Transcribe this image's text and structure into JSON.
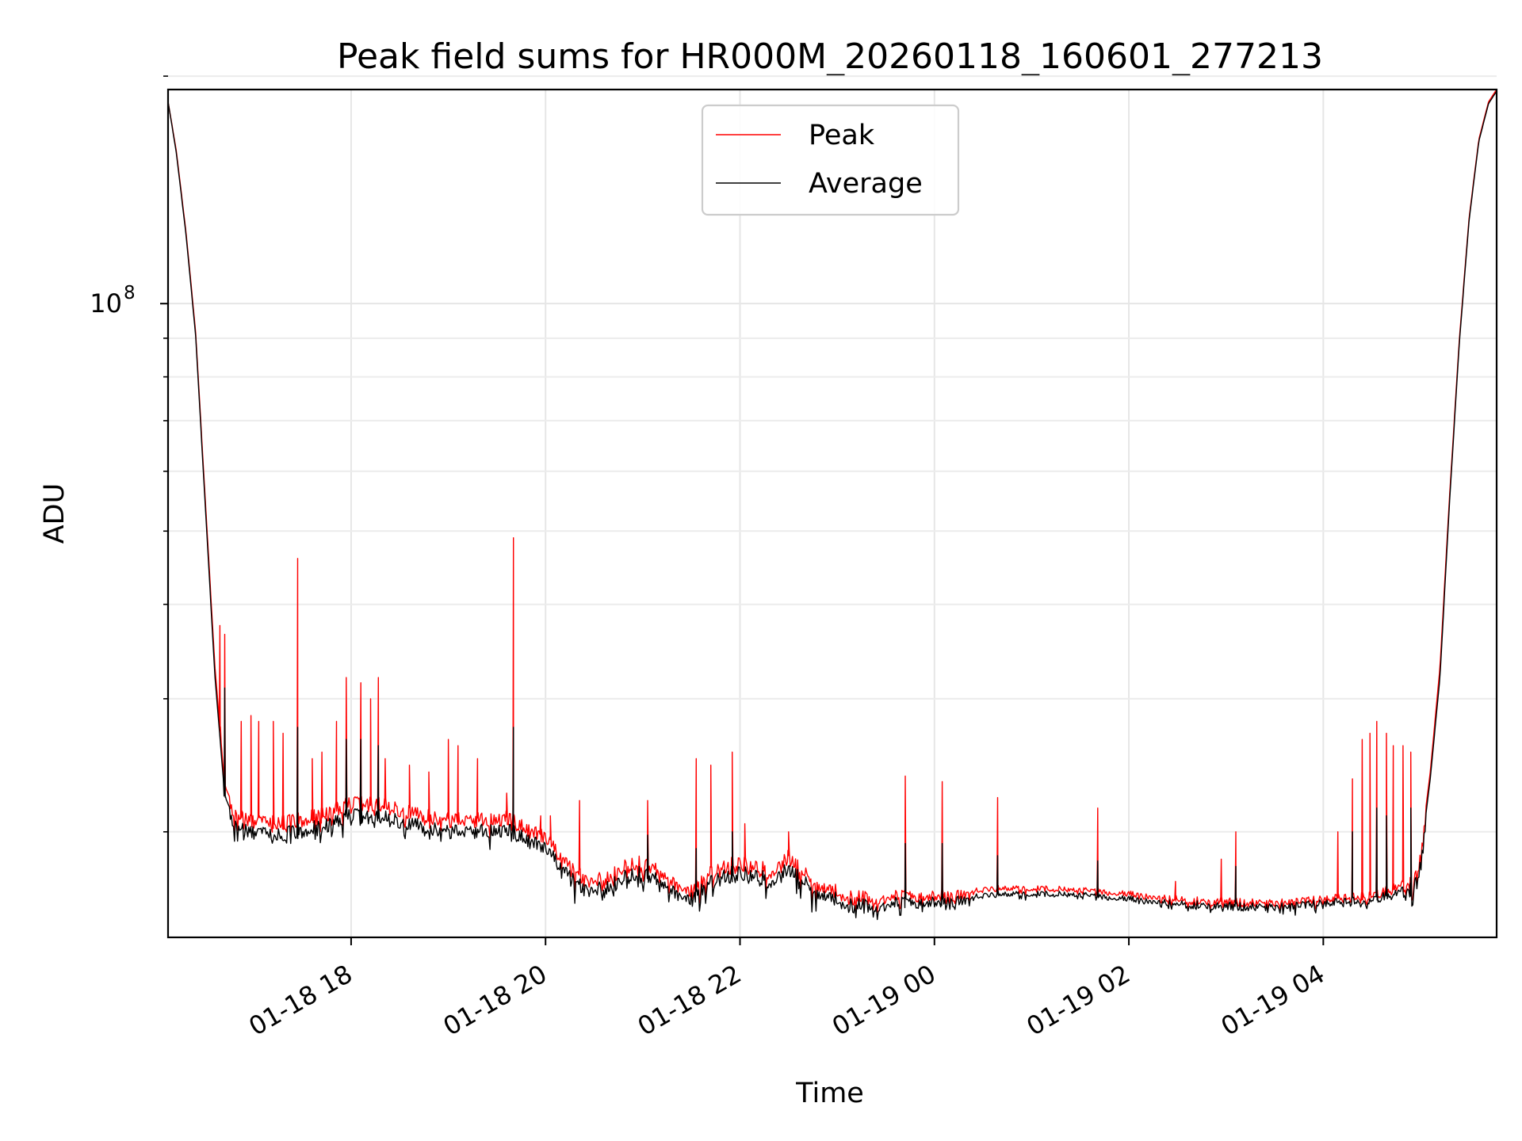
{
  "chart_data": {
    "type": "line",
    "title": "Peak field sums for HR000M_20260118_160601_277213",
    "xlabel": "Time",
    "ylabel": "ADU",
    "yscale": "log",
    "ylim": [
      14500000,
      192000000
    ],
    "xlim_hours": [
      16.117,
      29.783
    ],
    "x_unit": "hours since 2026-01-18 00:00",
    "grid": true,
    "legend_position": "upper center",
    "x_ticks": [
      {
        "hour": 18,
        "label": "01-18 18"
      },
      {
        "hour": 20,
        "label": "01-18 20"
      },
      {
        "hour": 22,
        "label": "01-18 22"
      },
      {
        "hour": 24,
        "label": "01-19 00"
      },
      {
        "hour": 26,
        "label": "01-19 02"
      },
      {
        "hour": 28,
        "label": "01-19 04"
      }
    ],
    "y_major_ticks": [
      {
        "value": 100000000,
        "label": "10",
        "exp": "8"
      }
    ],
    "y_minor_ticks": [
      20000000,
      30000000,
      40000000,
      50000000,
      60000000,
      70000000,
      80000000,
      90000000,
      200000000
    ],
    "series": [
      {
        "name": "Peak",
        "color": "#ff0000",
        "baseline": [
          [
            16.117,
            185000000
          ],
          [
            16.2,
            160000000
          ],
          [
            16.3,
            125000000
          ],
          [
            16.4,
            92000000
          ],
          [
            16.5,
            55000000
          ],
          [
            16.6,
            33000000
          ],
          [
            16.7,
            23000000
          ],
          [
            16.8,
            21500000
          ],
          [
            17.0,
            21000000
          ],
          [
            17.3,
            21000000
          ],
          [
            17.7,
            21500000
          ],
          [
            18.0,
            22300000
          ],
          [
            18.3,
            22200000
          ],
          [
            18.7,
            21500000
          ],
          [
            19.0,
            21200000
          ],
          [
            19.3,
            21200000
          ],
          [
            19.6,
            21300000
          ],
          [
            20.0,
            20000000
          ],
          [
            20.4,
            17600000
          ],
          [
            20.6,
            17700000
          ],
          [
            20.9,
            18700000
          ],
          [
            21.2,
            18100000
          ],
          [
            21.5,
            17000000
          ],
          [
            21.8,
            18500000
          ],
          [
            22.05,
            18500000
          ],
          [
            22.3,
            18200000
          ],
          [
            22.5,
            18900000
          ],
          [
            22.8,
            17300000
          ],
          [
            23.2,
            16800000
          ],
          [
            24.0,
            16700000
          ],
          [
            24.7,
            17000000
          ],
          [
            25.4,
            16950000
          ],
          [
            26.0,
            16700000
          ],
          [
            26.5,
            16450000
          ],
          [
            27.0,
            16350000
          ],
          [
            27.5,
            16300000
          ],
          [
            28.0,
            16500000
          ],
          [
            28.5,
            16650000
          ],
          [
            28.9,
            17400000
          ],
          [
            29.0,
            18800000
          ],
          [
            29.1,
            24000000
          ],
          [
            29.2,
            33000000
          ],
          [
            29.3,
            56000000
          ],
          [
            29.4,
            90000000
          ],
          [
            29.5,
            130000000
          ],
          [
            29.6,
            165000000
          ],
          [
            29.7,
            185000000
          ],
          [
            29.783,
            192000000
          ]
        ],
        "spikes": [
          [
            16.65,
            37500000
          ],
          [
            16.7,
            36500000
          ],
          [
            16.87,
            28000000
          ],
          [
            16.97,
            28500000
          ],
          [
            17.05,
            28000000
          ],
          [
            17.2,
            28000000
          ],
          [
            17.3,
            27000000
          ],
          [
            17.45,
            46000000
          ],
          [
            17.6,
            25000000
          ],
          [
            17.7,
            25500000
          ],
          [
            17.85,
            28000000
          ],
          [
            17.95,
            32000000
          ],
          [
            18.1,
            31500000
          ],
          [
            18.2,
            30000000
          ],
          [
            18.28,
            32000000
          ],
          [
            18.35,
            25000000
          ],
          [
            18.6,
            24500000
          ],
          [
            18.8,
            24000000
          ],
          [
            19.0,
            26500000
          ],
          [
            19.1,
            26000000
          ],
          [
            19.3,
            25000000
          ],
          [
            19.6,
            22500000
          ],
          [
            19.67,
            49000000
          ],
          [
            19.95,
            21000000
          ],
          [
            20.05,
            21000000
          ],
          [
            20.35,
            22000000
          ],
          [
            21.05,
            22000000
          ],
          [
            21.55,
            25000000
          ],
          [
            21.7,
            24500000
          ],
          [
            21.92,
            25500000
          ],
          [
            22.05,
            20500000
          ],
          [
            22.5,
            20000000
          ],
          [
            23.7,
            23700000
          ],
          [
            24.08,
            23300000
          ],
          [
            24.65,
            22200000
          ],
          [
            25.68,
            21500000
          ],
          [
            26.48,
            17200000
          ],
          [
            26.95,
            18400000
          ],
          [
            27.1,
            20000000
          ],
          [
            28.15,
            20000000
          ],
          [
            28.3,
            23500000
          ],
          [
            28.4,
            26500000
          ],
          [
            28.48,
            27000000
          ],
          [
            28.55,
            28000000
          ],
          [
            28.65,
            27000000
          ],
          [
            28.72,
            26000000
          ],
          [
            28.82,
            26000000
          ],
          [
            28.9,
            25500000
          ]
        ]
      },
      {
        "name": "Average",
        "color": "#000000",
        "baseline": [
          [
            16.117,
            185000000
          ],
          [
            16.2,
            159000000
          ],
          [
            16.3,
            124000000
          ],
          [
            16.4,
            91000000
          ],
          [
            16.5,
            54000000
          ],
          [
            16.6,
            32000000
          ],
          [
            16.7,
            22300000
          ],
          [
            16.8,
            20800000
          ],
          [
            17.0,
            20300000
          ],
          [
            17.3,
            20300000
          ],
          [
            17.7,
            20800000
          ],
          [
            18.0,
            21500000
          ],
          [
            18.3,
            21400000
          ],
          [
            18.7,
            20800000
          ],
          [
            19.0,
            20500000
          ],
          [
            19.3,
            20500000
          ],
          [
            19.6,
            20600000
          ],
          [
            20.0,
            19400000
          ],
          [
            20.4,
            17100000
          ],
          [
            20.6,
            17200000
          ],
          [
            20.9,
            18100000
          ],
          [
            21.2,
            17600000
          ],
          [
            21.5,
            16600000
          ],
          [
            21.8,
            18000000
          ],
          [
            22.05,
            18000000
          ],
          [
            22.3,
            17700000
          ],
          [
            22.5,
            18300000
          ],
          [
            22.8,
            16900000
          ],
          [
            23.2,
            16400000
          ],
          [
            24.0,
            16400000
          ],
          [
            24.7,
            16700000
          ],
          [
            25.4,
            16700000
          ],
          [
            26.0,
            16450000
          ],
          [
            26.5,
            16250000
          ],
          [
            27.0,
            16150000
          ],
          [
            27.5,
            16100000
          ],
          [
            28.0,
            16300000
          ],
          [
            28.5,
            16450000
          ],
          [
            28.9,
            17100000
          ],
          [
            29.0,
            18400000
          ],
          [
            29.1,
            23500000
          ],
          [
            29.2,
            32000000
          ],
          [
            29.3,
            55000000
          ],
          [
            29.4,
            89000000
          ],
          [
            29.5,
            129000000
          ],
          [
            29.6,
            164000000
          ],
          [
            29.7,
            184000000
          ],
          [
            29.783,
            191000000
          ]
        ],
        "spikes": [
          [
            16.7,
            31000000
          ],
          [
            17.45,
            27500000
          ],
          [
            17.95,
            26500000
          ],
          [
            18.1,
            26500000
          ],
          [
            18.28,
            26000000
          ],
          [
            19.67,
            27500000
          ],
          [
            21.05,
            19800000
          ],
          [
            21.55,
            19000000
          ],
          [
            21.92,
            20000000
          ],
          [
            23.7,
            19300000
          ],
          [
            24.08,
            19300000
          ],
          [
            24.65,
            18600000
          ],
          [
            25.68,
            18300000
          ],
          [
            27.1,
            18000000
          ],
          [
            28.3,
            20000000
          ],
          [
            28.55,
            21500000
          ],
          [
            28.65,
            21000000
          ],
          [
            28.9,
            21500000
          ]
        ]
      }
    ]
  }
}
